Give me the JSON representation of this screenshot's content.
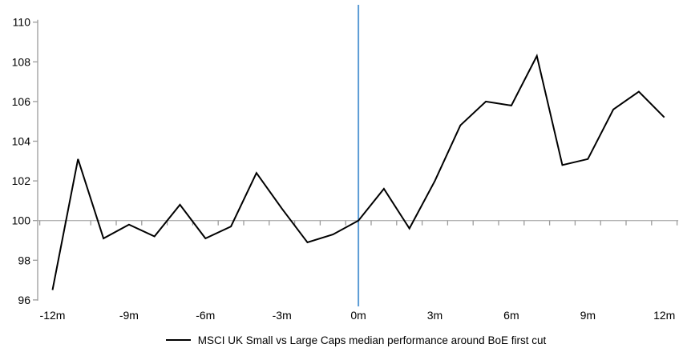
{
  "chart_data": {
    "type": "line",
    "title": "",
    "xlabel": "",
    "ylabel": "",
    "x": [
      -12,
      -11,
      -10,
      -9,
      -8,
      -7,
      -6,
      -5,
      -4,
      -3,
      -2,
      -1,
      0,
      1,
      2,
      3,
      4,
      5,
      6,
      7,
      8,
      9,
      10,
      11,
      12
    ],
    "series": [
      {
        "name": "MSCI UK Small vs Large Caps median performance around BoE first cut",
        "color": "#000000",
        "values": [
          96.5,
          103.1,
          99.1,
          99.8,
          99.2,
          100.8,
          99.1,
          99.7,
          102.4,
          100.6,
          98.9,
          99.3,
          100.0,
          101.6,
          99.6,
          102.0,
          104.8,
          106.0,
          105.8,
          108.3,
          102.8,
          103.1,
          105.6,
          106.5,
          105.2
        ]
      }
    ],
    "x_axis": {
      "tick_values": [
        -12,
        -9,
        -6,
        -3,
        0,
        3,
        6,
        9,
        12
      ],
      "tick_labels": [
        "-12m",
        "-9m",
        "-6m",
        "-3m",
        "0m",
        "3m",
        "6m",
        "9m",
        "12m"
      ],
      "range": [
        -12,
        12
      ],
      "minor_tick_every_month": true
    },
    "y_axis": {
      "tick_values": [
        96,
        98,
        100,
        102,
        104,
        106,
        108,
        110
      ],
      "tick_labels": [
        "96",
        "98",
        "100",
        "102",
        "104",
        "106",
        "108",
        "110"
      ],
      "range": [
        96,
        110
      ]
    },
    "baseline": {
      "value": 100,
      "color": "#b3b3b3"
    },
    "event_line": {
      "x": 0,
      "color": "#5b9bd5"
    },
    "grid": "off",
    "legend_position": "bottom"
  },
  "legend": {
    "label": "MSCI UK Small vs Large Caps median performance around BoE first cut"
  },
  "colors": {
    "series_line": "#000000",
    "axis": "#9b9b9b",
    "baseline": "#b3b3b3",
    "event_line": "#5b9bd5",
    "text": "#000000",
    "background": "#ffffff"
  }
}
